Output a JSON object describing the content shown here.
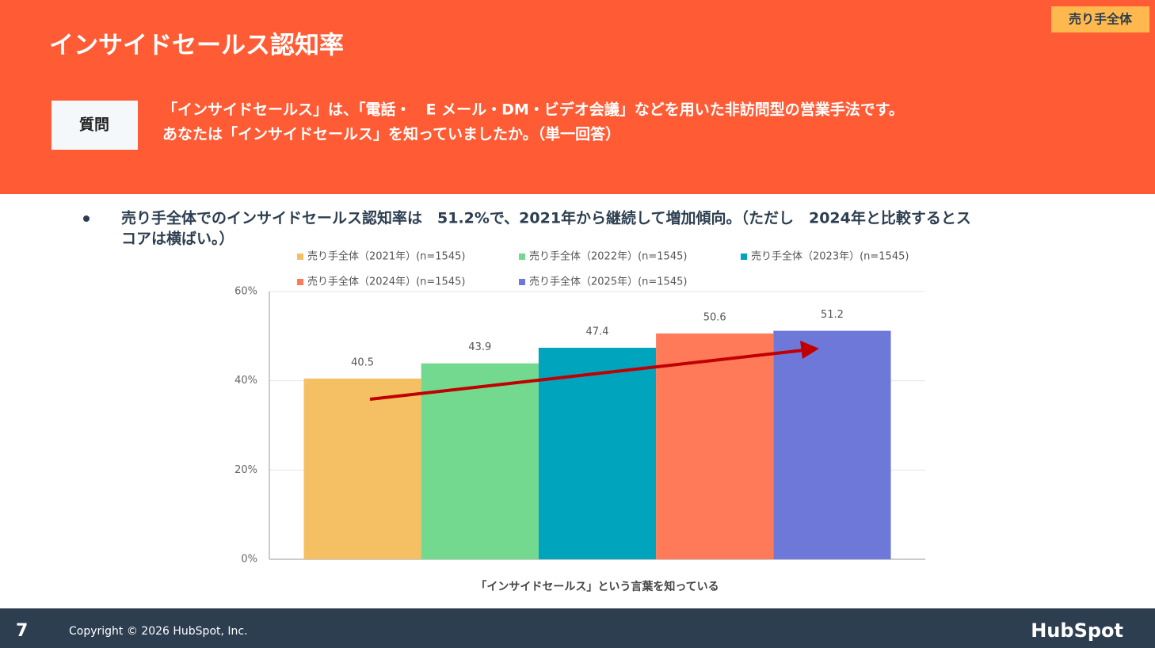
{
  "header": {
    "title": "インサイドセールス認知率",
    "tag": "売り手全体"
  },
  "question": {
    "label": "質問",
    "lines": [
      "「インサイドセールス」は、「電話・　E メール・DM・ビデオ会議」などを用いた非訪問型の営業手法です。",
      "あなたは「インサイドセールス」を知っていましたか。（単一回答）"
    ]
  },
  "summary": {
    "lines": [
      "売り手全体でのインサイドセールス認知率は　51.2%で、2021年から継続して増加傾向。（ただし　2024年と比較するとス",
      "コアは横ばい。）"
    ]
  },
  "chart_data": {
    "type": "bar",
    "categories": [
      "「インサイドセールス」という言葉を知っている"
    ],
    "series": [
      {
        "name": "売り手全体（2021年）(n=1545)",
        "color": "#f5c063",
        "values": [
          40.5
        ]
      },
      {
        "name": "売り手全体（2022年）(n=1545)",
        "color": "#72d98f",
        "values": [
          43.9
        ]
      },
      {
        "name": "売り手全体（2023年）(n=1545)",
        "color": "#00a4bd",
        "values": [
          47.4
        ]
      },
      {
        "name": "売り手全体（2024年）(n=1545)",
        "color": "#ff7a59",
        "values": [
          50.6
        ]
      },
      {
        "name": "売り手全体（2025年）(n=1545)",
        "color": "#6e78d9",
        "values": [
          51.2
        ]
      }
    ],
    "ylim": [
      0,
      60
    ],
    "yticks": [
      {
        "value": 0,
        "label": "0%"
      },
      {
        "value": 20,
        "label": "20%"
      },
      {
        "value": 40,
        "label": "40%"
      },
      {
        "value": 60,
        "label": "60%"
      }
    ],
    "grid": true
  },
  "footer": {
    "page": "7",
    "copyright": "Copyright © 2026 HubSpot, Inc.",
    "logo": "HubSpot"
  }
}
